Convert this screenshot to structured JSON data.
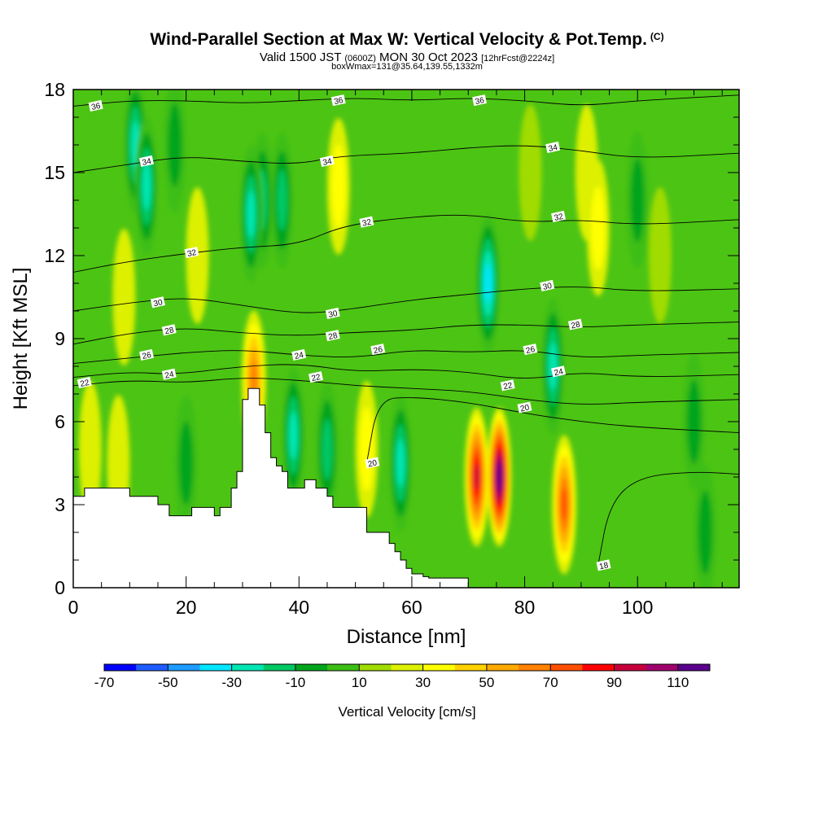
{
  "header": {
    "title": "Wind-Parallel Section at Max W: Vertical Velocity & Pot.Temp.",
    "copyright": "(C)",
    "valid_a": "Valid 1500 JST",
    "valid_z": "(0600Z)",
    "valid_b": "MON 30 Oct 2023",
    "fcst": "[12hrFcst@2224z]",
    "box": "boxWmax=131@35.64,139.55,1332m"
  },
  "chart_data": {
    "type": "heatmap",
    "xlabel": "Distance [nm]",
    "ylabel": "Height [Kft MSL]",
    "xlim": [
      0,
      118
    ],
    "ylim": [
      0,
      18
    ],
    "x_ticks": [
      0,
      20,
      40,
      60,
      80,
      100
    ],
    "y_ticks": [
      0,
      3,
      6,
      9,
      12,
      15,
      18
    ],
    "colorbar": {
      "label": "Vertical Velocity [cm/s]",
      "range": [
        -70,
        120
      ],
      "tick_labels": [
        "-70",
        "-50",
        "-30",
        "-10",
        "10",
        "30",
        "50",
        "70",
        "90",
        "110"
      ],
      "colors": [
        "#0000ff",
        "#1e5cff",
        "#1e9cff",
        "#00e6ff",
        "#00e6b4",
        "#00c864",
        "#00a51e",
        "#3cbe14",
        "#a0dc00",
        "#dcf000",
        "#ffff00",
        "#ffd200",
        "#ffaa00",
        "#ff8200",
        "#ff5000",
        "#ff0000",
        "#c8003c",
        "#a0006e",
        "#5a008c"
      ]
    },
    "vertical_velocity_cells": [
      {
        "x": 11,
        "y": 16,
        "w": -25
      },
      {
        "x": 13,
        "y": 14.5,
        "w": -30
      },
      {
        "x": 18,
        "y": 16,
        "w": -10
      },
      {
        "x": 22,
        "y": 12,
        "w": 15
      },
      {
        "x": 9,
        "y": 10.5,
        "w": 20
      },
      {
        "x": 3,
        "y": 5,
        "w": 20
      },
      {
        "x": 8,
        "y": 4.5,
        "w": 15
      },
      {
        "x": 20,
        "y": 4.5,
        "w": -10
      },
      {
        "x": 31.5,
        "y": 13.5,
        "w": -30
      },
      {
        "x": 33.5,
        "y": 14,
        "w": -15
      },
      {
        "x": 37,
        "y": 14,
        "w": -20
      },
      {
        "x": 47,
        "y": 14.5,
        "w": 30
      },
      {
        "x": 39,
        "y": 5.5,
        "w": -25
      },
      {
        "x": 45,
        "y": 5,
        "w": -15
      },
      {
        "x": 52,
        "y": 5,
        "w": 30
      },
      {
        "x": 58,
        "y": 4.5,
        "w": -25
      },
      {
        "x": 73.5,
        "y": 11,
        "w": -35
      },
      {
        "x": 71.5,
        "y": 4,
        "w": 85
      },
      {
        "x": 75.5,
        "y": 4,
        "w": 115
      },
      {
        "x": 87,
        "y": 3,
        "w": 70
      },
      {
        "x": 85,
        "y": 8,
        "w": -25
      },
      {
        "x": 91,
        "y": 15,
        "w": 20
      },
      {
        "x": 93,
        "y": 13,
        "w": 25
      },
      {
        "x": 81,
        "y": 15,
        "w": 10
      },
      {
        "x": 100,
        "y": 14,
        "w": -10
      },
      {
        "x": 104,
        "y": 12,
        "w": 10
      },
      {
        "x": 110,
        "y": 6,
        "w": -10
      },
      {
        "x": 32,
        "y": 7.5,
        "w": 55
      },
      {
        "x": 112,
        "y": 2,
        "w": -5
      }
    ],
    "terrain": {
      "x": [
        0,
        2,
        2,
        10,
        10,
        15,
        15,
        17,
        17,
        21,
        21,
        23,
        23,
        25,
        25,
        26,
        26,
        28,
        28,
        29,
        29,
        30,
        30,
        31,
        31,
        33,
        33,
        34,
        34,
        35,
        35,
        36,
        36,
        37,
        37,
        38,
        38,
        40,
        40,
        41,
        41,
        43,
        43,
        45,
        45,
        46,
        46,
        52,
        52,
        56,
        56,
        57,
        57,
        58,
        58,
        59,
        59,
        60,
        60,
        62,
        62,
        63,
        63,
        70,
        70
      ],
      "y": [
        3.3,
        3.3,
        3.6,
        3.6,
        3.3,
        3.3,
        3.0,
        3.0,
        2.6,
        2.6,
        2.9,
        2.9,
        2.9,
        2.9,
        2.6,
        2.6,
        2.9,
        2.9,
        3.6,
        3.6,
        4.2,
        4.2,
        6.8,
        6.8,
        7.2,
        7.2,
        6.6,
        6.6,
        5.6,
        5.6,
        4.7,
        4.7,
        4.4,
        4.4,
        4.2,
        4.2,
        3.6,
        3.6,
        3.6,
        3.6,
        3.9,
        3.9,
        3.6,
        3.6,
        3.3,
        3.3,
        2.9,
        2.9,
        2.0,
        2.0,
        1.6,
        1.6,
        1.3,
        1.3,
        1.0,
        1.0,
        0.7,
        0.7,
        0.5,
        0.5,
        0.4,
        0.4,
        0.35,
        0.35,
        0
      ]
    },
    "theta_contours": [
      {
        "label": "36",
        "x": [
          0,
          10,
          20,
          30,
          40,
          50,
          60,
          70,
          80,
          90,
          100,
          118
        ],
        "y": [
          17.4,
          17.6,
          17.6,
          17.5,
          17.6,
          17.7,
          17.6,
          17.7,
          17.6,
          17.4,
          17.6,
          17.8
        ]
      },
      {
        "label": "34",
        "x": [
          0,
          10,
          20,
          30,
          40,
          47,
          60,
          70,
          80,
          90,
          100,
          118
        ],
        "y": [
          15.0,
          15.3,
          15.6,
          15.4,
          15.3,
          15.6,
          15.7,
          15.9,
          16.0,
          15.8,
          15.5,
          15.7
        ]
      },
      {
        "label": "32",
        "x": [
          0,
          10,
          21,
          30,
          40,
          48,
          60,
          70,
          80,
          90,
          100,
          118
        ],
        "y": [
          11.4,
          11.8,
          12.1,
          12.3,
          12.4,
          13.1,
          13.4,
          13.5,
          13.2,
          13.3,
          13.1,
          13.3
        ]
      },
      {
        "label": "30",
        "x": [
          0,
          10,
          20,
          30,
          40,
          47,
          60,
          70,
          80,
          90,
          100,
          118
        ],
        "y": [
          10.0,
          10.3,
          10.5,
          10.2,
          9.9,
          10.0,
          10.4,
          10.6,
          10.8,
          10.9,
          10.7,
          10.8
        ]
      },
      {
        "label": "28",
        "x": [
          0,
          10,
          20,
          30,
          40,
          47,
          60,
          70,
          80,
          90,
          100,
          118
        ],
        "y": [
          8.8,
          9.2,
          9.4,
          9.2,
          9.1,
          9.2,
          9.3,
          9.5,
          9.5,
          9.4,
          9.5,
          9.6
        ]
      },
      {
        "label": "26",
        "x": [
          0,
          10,
          20,
          30,
          40,
          50,
          60,
          70,
          80,
          90,
          100,
          118
        ],
        "y": [
          8.1,
          8.3,
          8.5,
          8.6,
          8.4,
          8.3,
          8.6,
          8.5,
          8.6,
          8.3,
          8.4,
          8.5
        ]
      },
      {
        "label": "24",
        "x": [
          0,
          10,
          18,
          30,
          40,
          50,
          60,
          70,
          80,
          90,
          100,
          118
        ],
        "y": [
          7.6,
          7.8,
          7.7,
          8.0,
          8.1,
          7.8,
          7.9,
          7.8,
          7.5,
          7.8,
          7.6,
          7.7
        ]
      },
      {
        "label": "22",
        "x": [
          0,
          10,
          20,
          30,
          40,
          50,
          60,
          70,
          80,
          90,
          100,
          118
        ],
        "y": [
          7.3,
          7.5,
          7.4,
          7.6,
          7.5,
          7.3,
          7.2,
          7.1,
          6.8,
          6.6,
          6.7,
          6.8
        ]
      },
      {
        "label": "20",
        "x": [
          52,
          54,
          60,
          70,
          80,
          90,
          100,
          118
        ],
        "y": [
          4.5,
          6.8,
          6.9,
          6.7,
          6.3,
          6.0,
          5.8,
          5.6
        ]
      },
      {
        "label": "18",
        "x": [
          93,
          95,
          100,
          110,
          118
        ],
        "y": [
          0.8,
          3.0,
          4.0,
          4.2,
          4.1
        ]
      }
    ],
    "contour_labels_shown": [
      {
        "text": "36",
        "x": 4,
        "y": 17.4
      },
      {
        "text": "36",
        "x": 47,
        "y": 17.6
      },
      {
        "text": "36",
        "x": 72,
        "y": 17.6
      },
      {
        "text": "34",
        "x": 13,
        "y": 15.4
      },
      {
        "text": "34",
        "x": 45,
        "y": 15.4
      },
      {
        "text": "34",
        "x": 85,
        "y": 15.9
      },
      {
        "text": "32",
        "x": 21,
        "y": 12.1
      },
      {
        "text": "32",
        "x": 52,
        "y": 13.2
      },
      {
        "text": "32",
        "x": 86,
        "y": 13.4
      },
      {
        "text": "30",
        "x": 15,
        "y": 10.3
      },
      {
        "text": "30",
        "x": 46,
        "y": 9.9
      },
      {
        "text": "30",
        "x": 84,
        "y": 10.9
      },
      {
        "text": "28",
        "x": 17,
        "y": 9.3
      },
      {
        "text": "28",
        "x": 46,
        "y": 9.1
      },
      {
        "text": "28",
        "x": 89,
        "y": 9.5
      },
      {
        "text": "26",
        "x": 13,
        "y": 8.4
      },
      {
        "text": "26",
        "x": 54,
        "y": 8.6
      },
      {
        "text": "26",
        "x": 81,
        "y": 8.6
      },
      {
        "text": "24",
        "x": 17,
        "y": 7.7
      },
      {
        "text": "24",
        "x": 40,
        "y": 8.4
      },
      {
        "text": "24",
        "x": 86,
        "y": 7.8
      },
      {
        "text": "22",
        "x": 2,
        "y": 7.4
      },
      {
        "text": "22",
        "x": 43,
        "y": 7.6
      },
      {
        "text": "22",
        "x": 77,
        "y": 7.3
      },
      {
        "text": "20",
        "x": 53,
        "y": 4.5
      },
      {
        "text": "20",
        "x": 80,
        "y": 6.5
      },
      {
        "text": "18",
        "x": 94,
        "y": 0.8
      }
    ]
  }
}
